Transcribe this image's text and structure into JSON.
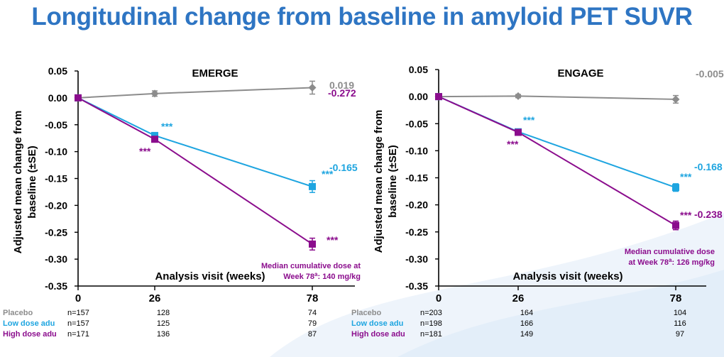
{
  "title": "Longitudinal change from baseline in amyloid PET SUVR",
  "colors": {
    "placebo": "#8c8c8c",
    "low": "#1ea5e0",
    "high": "#8b0d8d",
    "title": "#2e75c3",
    "axis": "#000000"
  },
  "chart_data": [
    {
      "type": "line",
      "title": "EMERGE",
      "ylabel": "Adjusted mean change from baseline (±SE)",
      "xlabel": "Analysis visit (weeks)",
      "ylim": [
        -0.35,
        0.05
      ],
      "yticks": [
        "0.05",
        "0.00",
        "-0.05",
        "-0.10",
        "-0.15",
        "-0.20",
        "-0.25",
        "-0.30",
        "-0.35"
      ],
      "x": [
        0,
        26,
        78
      ],
      "xticks": [
        "0",
        "26",
        "78"
      ],
      "series": [
        {
          "name": "Placebo",
          "values": [
            0,
            0.008,
            0.019
          ],
          "se": [
            0,
            0.005,
            0.012
          ],
          "marker": "diamond",
          "end_label": "0.019",
          "stars_26": "",
          "stars_78": ""
        },
        {
          "name": "Low dose adu",
          "values": [
            0,
            -0.07,
            -0.165
          ],
          "se": [
            0,
            0.005,
            0.011
          ],
          "marker": "square",
          "end_label": "-0.165",
          "stars_26": "***",
          "stars_78": "***"
        },
        {
          "name": "High dose adu",
          "values": [
            0,
            -0.077,
            -0.272
          ],
          "se": [
            0,
            0.005,
            0.011
          ],
          "marker": "square",
          "end_label": "-0.272",
          "stars_26": "***",
          "stars_78": "***"
        }
      ],
      "dose_note": [
        "Median cumulative dose at",
        "Week 78",
        "a",
        ": 140 mg/kg"
      ],
      "n_table": [
        {
          "name": "Placebo",
          "n0": "n=157",
          "n26": "128",
          "n78": "74"
        },
        {
          "name": "Low dose adu",
          "n0": "n=157",
          "n26": "125",
          "n78": "79"
        },
        {
          "name": "High dose adu",
          "n0": "n=171",
          "n26": "136",
          "n78": "87"
        }
      ]
    },
    {
      "type": "line",
      "title": "ENGAGE",
      "ylabel": "Adjusted mean change from baseline (±SE)",
      "xlabel": "Analysis visit (weeks)",
      "ylim": [
        -0.35,
        0.05
      ],
      "yticks": [
        "0.05",
        "0.00",
        "-0.05",
        "-0.10",
        "-0.15",
        "-0.20",
        "-0.25",
        "-0.30",
        "-0.35"
      ],
      "x": [
        0,
        26,
        78
      ],
      "xticks": [
        "0",
        "26",
        "78"
      ],
      "series": [
        {
          "name": "Placebo",
          "values": [
            0,
            0.001,
            -0.005
          ],
          "se": [
            0,
            0.003,
            0.007
          ],
          "marker": "diamond",
          "end_label": "-0.005",
          "stars_26": "",
          "stars_78": ""
        },
        {
          "name": "Low dose adu",
          "values": [
            0,
            -0.065,
            -0.168
          ],
          "se": [
            0,
            0.004,
            0.007
          ],
          "marker": "square",
          "end_label": "-0.168",
          "stars_26": "***",
          "stars_78": "***"
        },
        {
          "name": "High dose adu",
          "values": [
            0,
            -0.066,
            -0.238
          ],
          "se": [
            0,
            0.004,
            0.008
          ],
          "marker": "square",
          "end_label": "-0.238",
          "stars_26": "***",
          "stars_78": "***"
        }
      ],
      "dose_note": [
        "Median cumulative dose",
        "at Week 78",
        "a",
        ": 126 mg/kg"
      ],
      "n_table": [
        {
          "name": "Placebo",
          "n0": "n=203",
          "n26": "164",
          "n78": "104"
        },
        {
          "name": "Low dose adu",
          "n0": "n=198",
          "n26": "166",
          "n78": "116"
        },
        {
          "name": "High dose adu",
          "n0": "n=181",
          "n26": "149",
          "n78": "97"
        }
      ]
    }
  ]
}
